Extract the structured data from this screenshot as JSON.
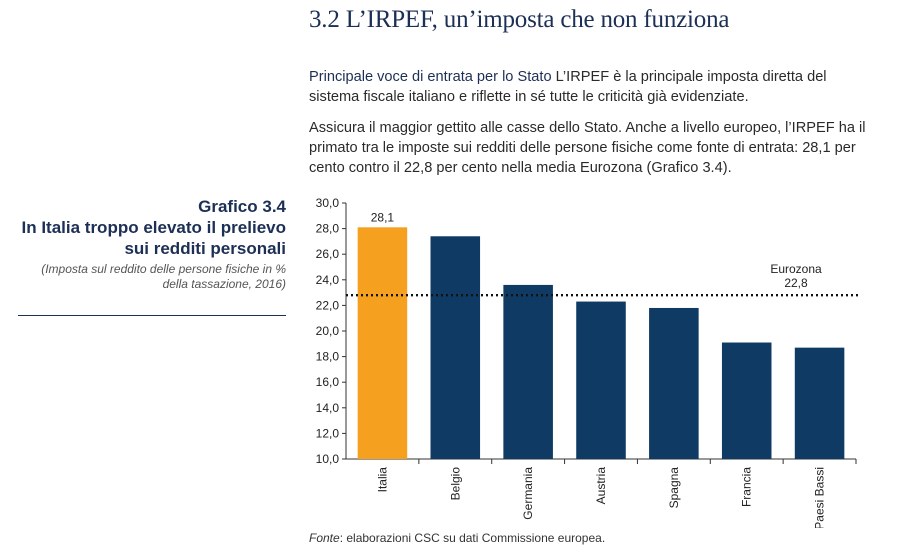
{
  "section": {
    "title": "3.2 L’IRPEF, un’imposta che non funziona"
  },
  "paragraph1": {
    "lead": "Principale voce di entrata per lo Stato",
    "text": " L’IRPEF è la principale imposta diretta del sistema fiscale italiano e riflette in sé tutte le criticità già evidenziate."
  },
  "paragraph2": {
    "text": "Assicura il maggior gettito alle casse dello Stato. Anche a livello europeo, l’IRPEF ha il primato tra le imposte sui redditi delle persone fisiche come fonte di entrata: 28,1 per cento contro il 22,8 per cento nella media Eurozona (Grafico 3.4)."
  },
  "figure": {
    "number": "Grafico 3.4",
    "title": "In Italia troppo elevato il prelievo sui redditi personali",
    "subtitle": "(Imposta sul reddito delle persone fisiche in % della tassazione, 2016)"
  },
  "source": {
    "label": "Fonte",
    "text": ": elaborazioni CSC su dati Commissione europea."
  },
  "chart_data": {
    "type": "bar",
    "categories": [
      "Italia",
      "Belgio",
      "Germania",
      "Austria",
      "Spagna",
      "Francia",
      "Paesi Bassi"
    ],
    "values": [
      28.1,
      27.4,
      23.6,
      22.3,
      21.8,
      19.1,
      18.7
    ],
    "data_labels": [
      "28,1",
      "",
      "",
      "",
      "",
      "",
      ""
    ],
    "ylim": [
      10,
      30
    ],
    "yticks": [
      "10,0",
      "12,0",
      "14,0",
      "16,0",
      "18,0",
      "20,0",
      "22,0",
      "24,0",
      "26,0",
      "28,0",
      "30,0"
    ],
    "reference_line": {
      "value": 22.8,
      "label": "Eurozona",
      "value_label": "22,8"
    },
    "colors": {
      "highlight": "#F5A01E",
      "bars": "#0E3A63",
      "reference": "#111111"
    },
    "highlight_index": 0,
    "grid": false
  }
}
